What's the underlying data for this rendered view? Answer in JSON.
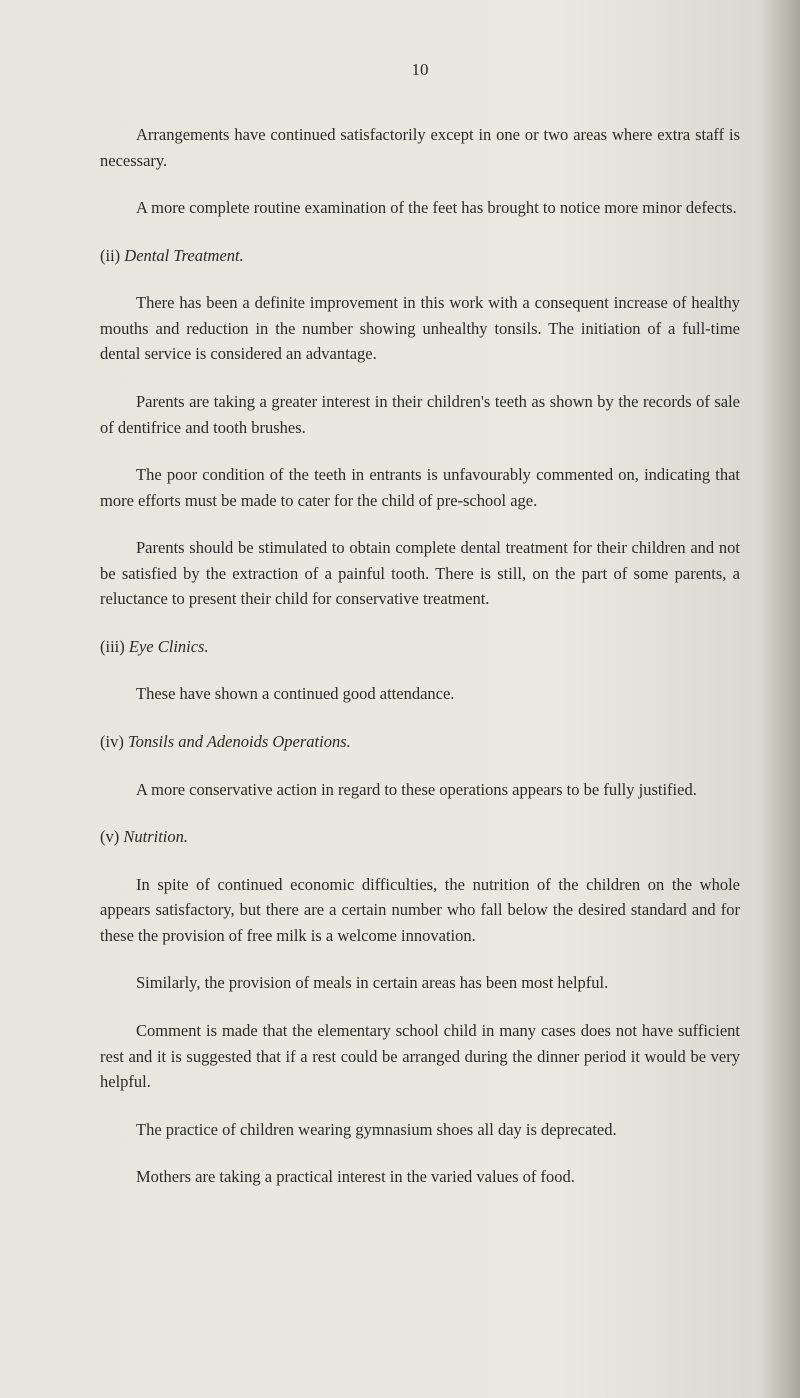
{
  "page_number": "10",
  "paragraphs": {
    "p1": "Arrangements have continued satisfactorily except in one or two areas where extra staff is necessary.",
    "p2": "A more complete routine examination of the feet has brought to notice more minor defects.",
    "s2_roman": "(ii) ",
    "s2_title": "Dental Treatment.",
    "p3": "There has been a definite improvement in this work with a consequent increase of healthy mouths and reduction in the number showing unhealthy tonsils. The initiation of a full-time dental service is considered an advantage.",
    "p4": "Parents are taking a greater interest in their children's teeth as shown by the records of sale of dentifrice and tooth brushes.",
    "p5": "The poor condition of the teeth in entrants is unfavourably commented on, indicating that more efforts must be made to cater for the child of pre-school age.",
    "p6": "Parents should be stimulated to obtain complete dental treatment for their children and not be satisfied by the extraction of a painful tooth. There is still, on the part of some parents, a reluctance to present their child for conservative treatment.",
    "s3_roman": "(iii) ",
    "s3_title": "Eye Clinics.",
    "p7": "These have shown a continued good attendance.",
    "s4_roman": "(iv) ",
    "s4_title": "Tonsils and Adenoids Operations.",
    "p8": "A more conservative action in regard to these operations appears to be fully justified.",
    "s5_roman": "(v) ",
    "s5_title": "Nutrition.",
    "p9": "In spite of continued economic difficulties, the nutrition of the children on the whole appears satisfactory, but there are a certain number who fall below the desired standard and for these the provision of free milk is a welcome innovation.",
    "p10": "Similarly, the provision of meals in certain areas has been most helpful.",
    "p11": "Comment is made that the elementary school child in many cases does not have sufficient rest and it is suggested that if a rest could be arranged during the dinner period it would be very helpful.",
    "p12": "The practice of children wearing gymnasium shoes all day is deprecated.",
    "p13": "Mothers are taking a practical interest in the varied values of food."
  }
}
